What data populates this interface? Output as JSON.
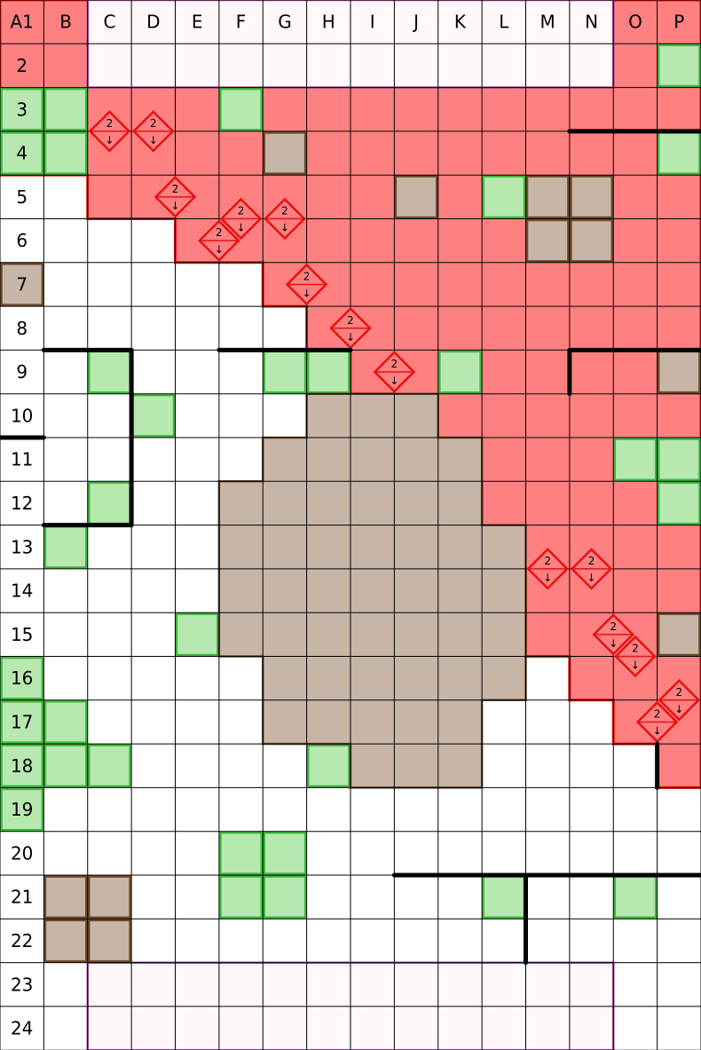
{
  "board": {
    "col_labels": [
      "A1",
      "B",
      "C",
      "D",
      "E",
      "F",
      "G",
      "H",
      "I",
      "J",
      "K",
      "L",
      "M",
      "N",
      "O",
      "P"
    ],
    "row_labels": [
      "2",
      "3",
      "4",
      "5",
      "6",
      "7",
      "8",
      "9",
      "10",
      "11",
      "12",
      "13",
      "14",
      "15",
      "16",
      "17",
      "18",
      "19",
      "20",
      "21",
      "22",
      "23",
      "24"
    ],
    "arrow_label": "2",
    "arrow_glyph": "↓"
  },
  "colors": {
    "danger_fill": "#ff8080",
    "danger_border": "#e81010",
    "grass_fill": "#b6e8b0",
    "grass_border": "#3cb83c",
    "rock_fill": "#c7b6a8",
    "rock_border": "#6b4a2a",
    "spawn_fill": "#fff7fa",
    "spawn_border": "#b050a0",
    "grid_line": "#000000",
    "wall": "#000000"
  },
  "danger_rows": [
    [
      0,
      0,
      15
    ],
    [
      1,
      0,
      15
    ],
    [
      2,
      0,
      15
    ],
    [
      3,
      0,
      15
    ],
    [
      4,
      2,
      15
    ],
    [
      5,
      4,
      15
    ],
    [
      6,
      6,
      15
    ],
    [
      7,
      7,
      15
    ],
    [
      8,
      8,
      15
    ],
    [
      9,
      9,
      15
    ],
    [
      10,
      10,
      15
    ],
    [
      11,
      11,
      15
    ],
    [
      12,
      11,
      15
    ],
    [
      13,
      12,
      15
    ],
    [
      14,
      12,
      15
    ],
    [
      15,
      13,
      15
    ],
    [
      16,
      14,
      15
    ],
    [
      17,
      15,
      15
    ]
  ],
  "spawn_zones": [
    {
      "c0": 2,
      "r0": 0,
      "c1": 13,
      "r1": 1
    },
    {
      "c0": 2,
      "r0": 22,
      "c1": 13,
      "r1": 23
    }
  ],
  "grass": [
    [
      15,
      1
    ],
    [
      0,
      2
    ],
    [
      1,
      2
    ],
    [
      5,
      2
    ],
    [
      0,
      3
    ],
    [
      1,
      3
    ],
    [
      15,
      3
    ],
    [
      11,
      4
    ],
    [
      2,
      8
    ],
    [
      6,
      8
    ],
    [
      7,
      8
    ],
    [
      10,
      8
    ],
    [
      3,
      9
    ],
    [
      14,
      10
    ],
    [
      15,
      10
    ],
    [
      2,
      11
    ],
    [
      15,
      11
    ],
    [
      1,
      12
    ],
    [
      4,
      14
    ],
    [
      0,
      15
    ],
    [
      0,
      16
    ],
    [
      1,
      16
    ],
    [
      0,
      17
    ],
    [
      1,
      17
    ],
    [
      2,
      17
    ],
    [
      7,
      17
    ],
    [
      0,
      18
    ],
    [
      5,
      19
    ],
    [
      6,
      19
    ],
    [
      5,
      20
    ],
    [
      6,
      20
    ],
    [
      11,
      20
    ],
    [
      14,
      20
    ]
  ],
  "rocks": [
    [
      6,
      3
    ],
    [
      9,
      4
    ],
    [
      12,
      4
    ],
    [
      13,
      4
    ],
    [
      12,
      5
    ],
    [
      13,
      5
    ],
    [
      0,
      6
    ],
    [
      15,
      8
    ],
    [
      15,
      14
    ],
    [
      1,
      20
    ],
    [
      2,
      20
    ],
    [
      1,
      21
    ],
    [
      2,
      21
    ]
  ],
  "rock_big_rows": [
    [
      9,
      7,
      9
    ],
    [
      10,
      6,
      10
    ],
    [
      11,
      5,
      10
    ],
    [
      12,
      5,
      11
    ],
    [
      13,
      5,
      11
    ],
    [
      14,
      5,
      11
    ],
    [
      15,
      6,
      11
    ],
    [
      16,
      6,
      10
    ],
    [
      17,
      8,
      10
    ]
  ],
  "arrow_tiles": [
    {
      "c": 2,
      "r": 3,
      "dir": "d"
    },
    {
      "c": 3,
      "r": 3,
      "dir": "d"
    },
    {
      "c": 3,
      "r": 4,
      "dir": "dr"
    },
    {
      "c": 4,
      "r": 5,
      "dir": "dr"
    },
    {
      "c": 5,
      "r": 5,
      "dir": "d"
    },
    {
      "c": 6,
      "r": 5,
      "dir": "d"
    },
    {
      "c": 6,
      "r": 6,
      "dir": "dr"
    },
    {
      "c": 7,
      "r": 7,
      "dir": "dr"
    },
    {
      "c": 8,
      "r": 8,
      "dir": "dr"
    },
    {
      "c": 12,
      "r": 13,
      "dir": "d"
    },
    {
      "c": 13,
      "r": 13,
      "dir": "d"
    },
    {
      "c": 13,
      "r": 14,
      "dir": "dr"
    },
    {
      "c": 14,
      "r": 15,
      "dir": "d"
    },
    {
      "c": 14,
      "r": 16,
      "dir": "dr"
    },
    {
      "c": 15,
      "r": 16,
      "dir": "d"
    }
  ],
  "walls": [
    [
      1,
      8,
      3,
      8
    ],
    [
      3,
      8,
      3,
      12
    ],
    [
      1,
      12,
      3,
      12
    ],
    [
      0,
      10,
      1,
      10
    ],
    [
      5,
      8,
      8,
      8
    ],
    [
      13,
      8,
      16,
      8
    ],
    [
      13,
      8,
      13,
      9
    ],
    [
      13,
      3,
      16,
      3
    ],
    [
      15,
      17,
      15,
      18
    ],
    [
      9,
      20,
      16,
      20
    ],
    [
      12,
      20,
      12,
      22
    ]
  ]
}
